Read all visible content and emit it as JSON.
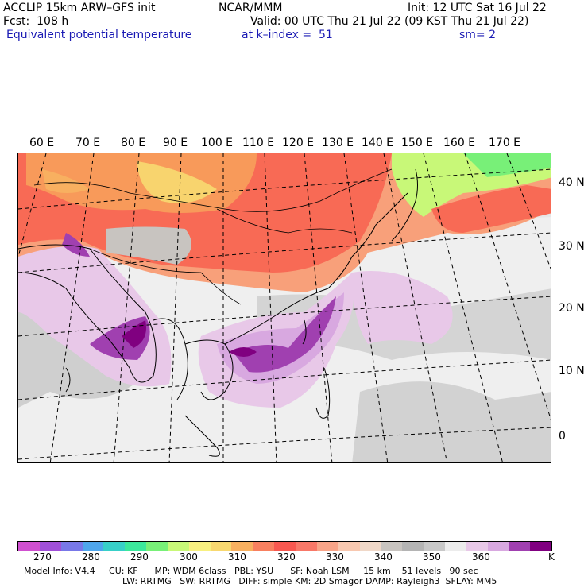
{
  "header": {
    "model_line": "ACCLIP 15km ARW–GFS init",
    "center": "NCAR/MMM",
    "init": "Init: 12 UTC Sat 16 Jul 22",
    "fcst": "Fcst:  108 h",
    "valid": "Valid: 00 UTC Thu 21 Jul 22 (09 KST Thu 21 Jul 22)",
    "field": "Equivalent potential temperature",
    "level": "at k–index =  51",
    "smoothing": "sm= 2"
  },
  "map": {
    "lon_labels": [
      "60 E",
      "70 E",
      "80 E",
      "90 E",
      "100 E",
      "110 E",
      "120 E",
      "130 E",
      "140 E",
      "150 E",
      "160 E",
      "170 E"
    ],
    "lat_labels": [
      "40 N",
      "30 N",
      "20 N",
      "10 N",
      "0"
    ]
  },
  "colorbar": {
    "unit": "K",
    "tick_labels": [
      "270",
      "280",
      "290",
      "300",
      "310",
      "320",
      "330",
      "340",
      "350",
      "360"
    ],
    "colors": [
      "#d050d0",
      "#a050d8",
      "#7878e8",
      "#4fa6ec",
      "#38d0c8",
      "#3ce89c",
      "#78f078",
      "#c8f878",
      "#f8f080",
      "#f8d870",
      "#f8b060",
      "#f88060",
      "#f85850",
      "#f87868",
      "#f8a488",
      "#f8c8b0",
      "#f0d8c8",
      "#c8c4c0",
      "#b4b4b4",
      "#c8c8c8",
      "#ececec",
      "#e8c8e8",
      "#d8a8e0",
      "#a040b0",
      "#800080"
    ]
  },
  "footer": {
    "line1": "Model Info: V4.4     CU: KF      MP: WDM 6class   PBL: YSU      SF: Noah LSM     15 km    51 levels   90 sec",
    "line2": "LW: RRTMG   SW: RRTMG   DIFF: simple KM: 2D Smagor DAMP: Rayleigh3  SFLAY: MM5"
  }
}
